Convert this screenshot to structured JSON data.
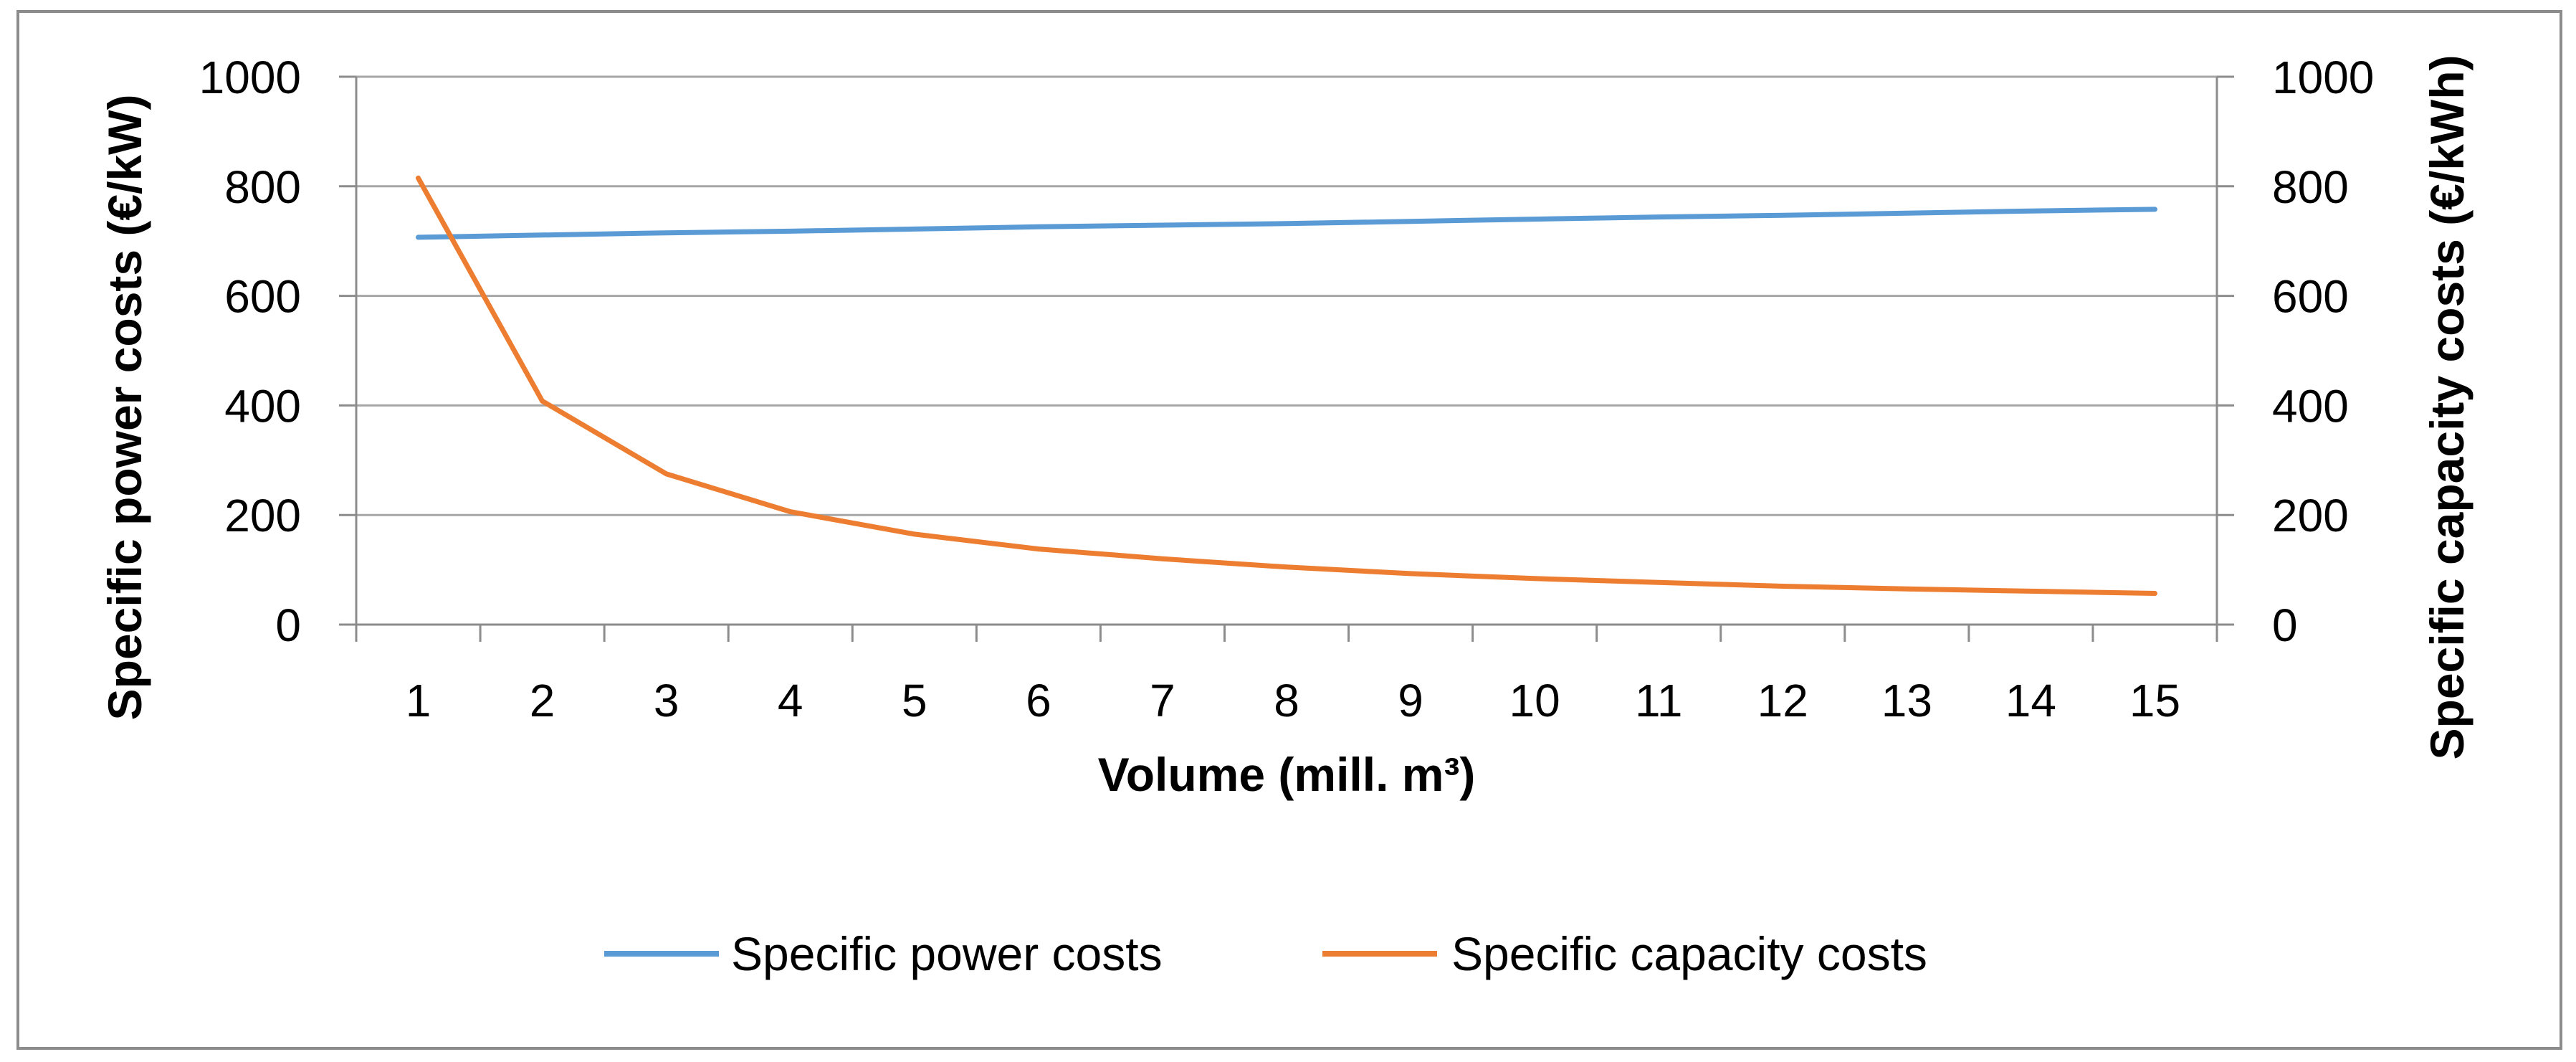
{
  "chart_data": {
    "type": "line",
    "title": "",
    "xlabel": "Volume (mill. m³)",
    "ylabel_left": "Specific power costs (€/kW)",
    "ylabel_right": "Specific capacity costs (€/kWh)",
    "categories": [
      "1",
      "2",
      "3",
      "4",
      "5",
      "6",
      "7",
      "8",
      "9",
      "10",
      "11",
      "12",
      "13",
      "14",
      "15"
    ],
    "ylim_left": [
      0,
      1000
    ],
    "ylim_right": [
      0,
      1000
    ],
    "yticks_left": [
      "0",
      "200",
      "400",
      "600",
      "800",
      "1000"
    ],
    "yticks_right": [
      "0",
      "200",
      "400",
      "600",
      "800",
      "1000"
    ],
    "grid": true,
    "legend_position": "bottom",
    "series": [
      {
        "name": "Specific power costs",
        "axis": "left",
        "color": "#5B9BD5",
        "values": [
          707,
          711,
          715,
          718,
          722,
          726,
          729,
          732,
          736,
          740,
          744,
          747,
          751,
          755,
          758
        ]
      },
      {
        "name": "Specific capacity costs",
        "axis": "right",
        "color": "#ED7D31",
        "values": [
          815,
          408,
          275,
          206,
          165,
          138,
          120,
          105,
          93,
          84,
          77,
          70,
          65,
          61,
          57
        ]
      }
    ]
  }
}
